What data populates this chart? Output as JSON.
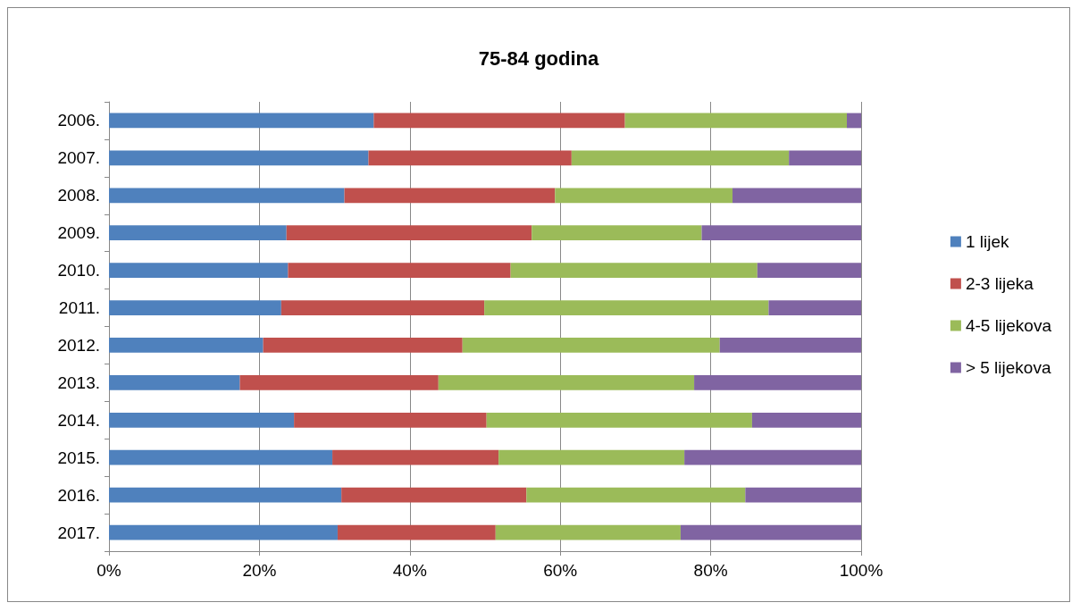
{
  "chart_data": {
    "type": "bar",
    "title": "75-84 godina",
    "orientation": "horizontal",
    "stacked": true,
    "categories": [
      "2006.",
      "2007.",
      "2008.",
      "2009.",
      "2010.",
      "2011.",
      "2012.",
      "2013.",
      "2014.",
      "2015.",
      "2016.",
      "2017."
    ],
    "series": [
      {
        "name": "1 lijek",
        "color": "#4f81bd",
        "values": [
          35.2,
          34.5,
          31.3,
          23.6,
          23.8,
          22.9,
          20.5,
          17.4,
          24.6,
          29.7,
          30.9,
          30.4
        ]
      },
      {
        "name": "2-3 lijeka",
        "color": "#c0504d",
        "values": [
          33.4,
          27.0,
          28.0,
          32.6,
          29.6,
          27.0,
          26.5,
          26.4,
          25.6,
          22.1,
          24.6,
          21.0
        ]
      },
      {
        "name": "4-5 lijekova",
        "color": "#9bbb59",
        "values": [
          29.5,
          28.9,
          23.6,
          22.6,
          32.8,
          37.8,
          34.2,
          34.0,
          35.3,
          24.7,
          29.1,
          24.6
        ]
      },
      {
        "name": "> 5 lijekova",
        "color": "#8064a2",
        "values": [
          1.9,
          9.6,
          17.1,
          21.2,
          13.8,
          12.3,
          18.8,
          22.2,
          14.5,
          23.5,
          15.4,
          24.0
        ]
      }
    ],
    "xlim": [
      0,
      100
    ],
    "xticks": [
      {
        "value": 0,
        "label": "0%"
      },
      {
        "value": 20,
        "label": "20%"
      },
      {
        "value": 40,
        "label": "40%"
      },
      {
        "value": 60,
        "label": "60%"
      },
      {
        "value": 80,
        "label": "80%"
      },
      {
        "value": 100,
        "label": "100%"
      }
    ],
    "grid": "x",
    "legend": "right"
  }
}
